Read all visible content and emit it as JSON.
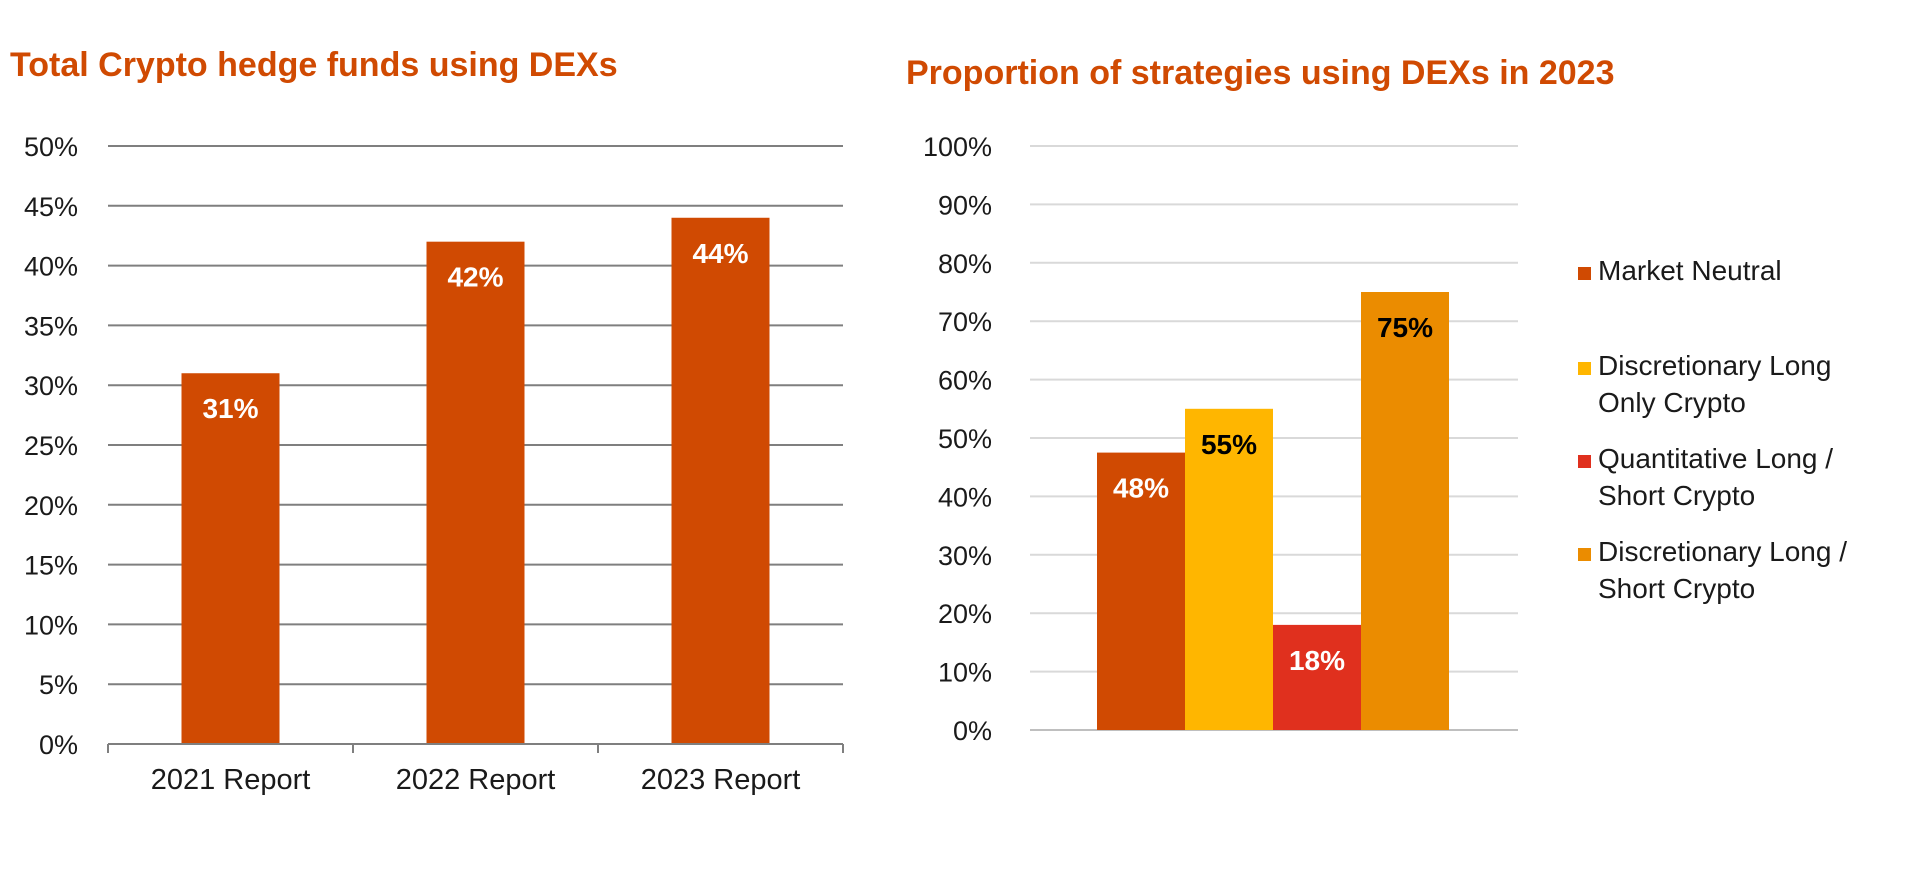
{
  "chart_data": [
    {
      "type": "bar",
      "title": "Total Crypto hedge funds using DEXs",
      "categories": [
        "2021 Report",
        "2022 Report",
        "2023 Report"
      ],
      "values": [
        31,
        42,
        44
      ],
      "data_labels": [
        "31%",
        "42%",
        "44%"
      ],
      "ylim": [
        0,
        50
      ],
      "yticks": [
        "0%",
        "5%",
        "10%",
        "15%",
        "20%",
        "25%",
        "30%",
        "35%",
        "40%",
        "45%",
        "50%"
      ],
      "grid": true,
      "legend": "none",
      "colors": {
        "bar": "#D04A02",
        "title": "#D04A02",
        "label": "#ffffff",
        "grid": "#7f7f7f"
      }
    },
    {
      "type": "bar",
      "title": "Proportion of strategies using DEXs in 2023",
      "categories": [
        ""
      ],
      "series": [
        {
          "name": "Market Neutral",
          "values": [
            47.5
          ],
          "label": "48%",
          "color": "#D04A02",
          "label_color": "#ffffff"
        },
        {
          "name": "Discretionary Long Only Crypto",
          "values": [
            55
          ],
          "label": "55%",
          "color": "#FFB600",
          "label_color": "#000000"
        },
        {
          "name": "Quantitative Long / Short Crypto",
          "values": [
            18
          ],
          "label": "18%",
          "color": "#E0301E",
          "label_color": "#ffffff"
        },
        {
          "name": "Discretionary Long / Short Crypto",
          "values": [
            75
          ],
          "label": "75%",
          "color": "#EB8C00",
          "label_color": "#000000"
        }
      ],
      "legend_lines": [
        [
          "Market Neutral"
        ],
        [
          "Discretionary Long",
          "Only Crypto"
        ],
        [
          "Quantitative Long /",
          "Short Crypto"
        ],
        [
          "Discretionary Long /",
          "Short Crypto"
        ]
      ],
      "ylim": [
        0,
        100
      ],
      "yticks": [
        "0%",
        "10%",
        "20%",
        "30%",
        "40%",
        "50%",
        "60%",
        "70%",
        "80%",
        "90%",
        "100%"
      ],
      "grid": true,
      "legend": "right",
      "colors": {
        "title": "#D04A02",
        "grid": "#d9d9d9"
      }
    }
  ]
}
